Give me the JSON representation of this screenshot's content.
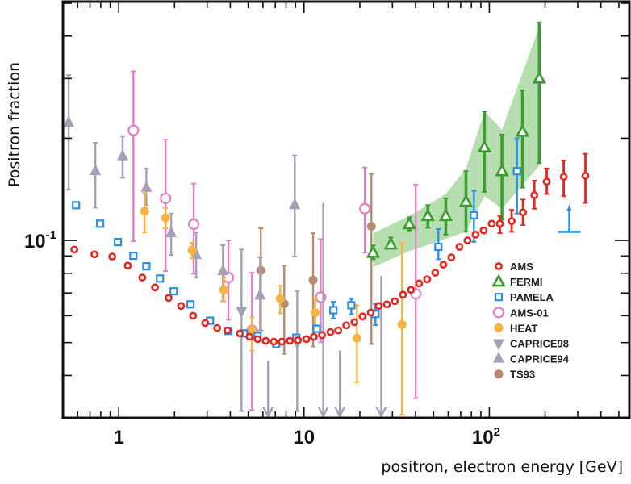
{
  "chart_data": {
    "type": "scatter",
    "title": "",
    "xlabel": "positron, electron energy [GeV]",
    "ylabel": "Positron fraction",
    "xscale": "log",
    "yscale": "log",
    "xlim": [
      0.5,
      570
    ],
    "ylim": [
      0.03,
      0.5
    ],
    "grid": false,
    "legend_position": "lower-right",
    "x_ticks": [
      {
        "value": 1,
        "base": "1",
        "exp": ""
      },
      {
        "value": 10,
        "base": "10",
        "exp": ""
      },
      {
        "value": 100,
        "base": "10",
        "exp": "2"
      }
    ],
    "y_ticks": [
      {
        "value": 0.1,
        "base": "10",
        "exp": "-1"
      }
    ],
    "band": {
      "series": "FERMI",
      "color": "#9fd397",
      "x": [
        23.6,
        37.0,
        58.2,
        74.8,
        94.1,
        117,
        186
      ],
      "upper": [
        0.105,
        0.118,
        0.137,
        0.163,
        0.24,
        0.212,
        0.426
      ],
      "lower": [
        0.0834,
        0.093,
        0.101,
        0.106,
        0.135,
        0.124,
        0.166
      ]
    },
    "series": [
      {
        "name": "AMS",
        "marker": "open-circle",
        "color": "#e8251f",
        "points": [
          [
            0.576,
            0.094,
            null,
            null
          ],
          [
            0.74,
            0.091,
            null,
            null
          ],
          [
            0.923,
            0.0896,
            null,
            null
          ],
          [
            1.12,
            0.0843,
            null,
            null
          ],
          [
            1.34,
            0.0777,
            null,
            null
          ],
          [
            1.57,
            0.0727,
            null,
            null
          ],
          [
            1.86,
            0.0677,
            null,
            null
          ],
          [
            2.17,
            0.0641,
            null,
            null
          ],
          [
            2.52,
            0.06,
            null,
            null
          ],
          [
            2.93,
            0.0571,
            null,
            null
          ],
          [
            3.4,
            0.0552,
            null,
            null
          ],
          [
            3.87,
            0.0543,
            null,
            null
          ],
          [
            4.51,
            0.0532,
            null,
            null
          ],
          [
            5.08,
            0.052,
            null,
            null
          ],
          [
            5.62,
            0.0512,
            null,
            null
          ],
          [
            6.21,
            0.0506,
            null,
            null
          ],
          [
            6.87,
            0.0503,
            null,
            null
          ],
          [
            7.59,
            0.0503,
            null,
            null
          ],
          [
            8.39,
            0.0506,
            null,
            null
          ],
          [
            9.27,
            0.0508,
            null,
            null
          ],
          [
            10.3,
            0.0512,
            null,
            null
          ],
          [
            11.3,
            0.052,
            null,
            null
          ],
          [
            12.5,
            0.0526,
            null,
            null
          ],
          [
            13.9,
            0.0537,
            null,
            null
          ],
          [
            15.3,
            0.0543,
            null,
            null
          ],
          [
            16.9,
            0.0562,
            null,
            null
          ],
          [
            18.7,
            0.0574,
            null,
            null
          ],
          [
            20.7,
            0.0597,
            null,
            null
          ],
          [
            22.9,
            0.0613,
            null,
            null
          ],
          [
            25.3,
            0.0641,
            null,
            null
          ],
          [
            28.0,
            0.0648,
            null,
            null
          ],
          [
            30.9,
            0.0662,
            null,
            null
          ],
          [
            34.2,
            0.0692,
            null,
            null
          ],
          [
            37.8,
            0.0715,
            null,
            null
          ],
          [
            41.8,
            0.0747,
            null,
            null
          ],
          [
            46.2,
            0.0768,
            null,
            null
          ],
          [
            51.1,
            0.0803,
            null,
            null
          ],
          [
            56.5,
            0.0848,
            null,
            null
          ],
          [
            62.4,
            0.0891,
            null,
            null
          ],
          [
            69.0,
            0.0957,
            null,
            null
          ],
          [
            76.3,
            0.1,
            null,
            null
          ],
          [
            84.3,
            0.104,
            null,
            null
          ],
          [
            93.2,
            0.107,
            null,
            null
          ],
          [
            103,
            0.112,
            null,
            null
          ],
          [
            114,
            0.112,
            0.105,
            0.118
          ],
          [
            132,
            0.114,
            0.106,
            0.123
          ],
          [
            152,
            0.121,
            0.111,
            0.132
          ],
          [
            175,
            0.136,
            0.124,
            0.15
          ],
          [
            204,
            0.149,
            0.137,
            0.163
          ],
          [
            252,
            0.154,
            0.135,
            0.172
          ],
          [
            330,
            0.155,
            0.129,
            0.18
          ]
        ]
      },
      {
        "name": "FERMI",
        "marker": "open-triangle-up",
        "color": "#3a9e2c",
        "points": [
          [
            23.6,
            0.092,
            0.0881,
            0.0967
          ],
          [
            29.4,
            0.0973,
            0.0947,
            0.102
          ],
          [
            37.0,
            0.1116,
            0.107,
            0.117
          ],
          [
            46.6,
            0.118,
            0.109,
            0.127
          ],
          [
            58.2,
            0.118,
            0.104,
            0.133
          ],
          [
            74.8,
            0.13,
            0.106,
            0.16
          ],
          [
            94.1,
            0.188,
            0.139,
            0.24
          ],
          [
            117,
            0.16,
            0.115,
            0.205
          ],
          [
            151,
            0.209,
            0.143,
            0.277
          ],
          [
            186,
            0.3,
            0.169,
            0.439
          ]
        ]
      },
      {
        "name": "PAMELA",
        "marker": "open-square",
        "color": "#2b8fe3",
        "points": [
          [
            0.588,
            0.127,
            null,
            null
          ],
          [
            0.794,
            0.112,
            null,
            null
          ],
          [
            0.99,
            0.0989,
            null,
            null
          ],
          [
            1.2,
            0.0901,
            null,
            null
          ],
          [
            1.41,
            0.0839,
            null,
            null
          ],
          [
            1.67,
            0.0772,
            null,
            null
          ],
          [
            1.98,
            0.0708,
            null,
            null
          ],
          [
            2.44,
            0.0648,
            null,
            null
          ],
          [
            3.11,
            0.058,
            null,
            null
          ],
          [
            3.91,
            0.0541,
            null,
            null
          ],
          [
            4.74,
            0.0532,
            null,
            null
          ],
          [
            5.62,
            0.0523,
            null,
            null
          ],
          [
            7.08,
            0.0495,
            null,
            null
          ],
          [
            9.09,
            0.0517,
            null,
            null
          ],
          [
            11.7,
            0.0549,
            null,
            null
          ],
          [
            14.4,
            0.0623,
            0.0589,
            0.066
          ],
          [
            18.0,
            0.0644,
            0.0606,
            0.0674
          ],
          [
            24.3,
            0.0607,
            0.0563,
            0.065
          ],
          [
            53.1,
            0.0957,
            0.088,
            0.108
          ],
          [
            82.6,
            0.1186,
            0.0991,
            0.14
          ],
          [
            141,
            0.16,
            0.12,
            0.2
          ]
        ],
        "lower_limits": [
          [
            270,
            0.106
          ]
        ]
      },
      {
        "name": "AMS-01",
        "marker": "open-circle-large",
        "color": "#e27dca",
        "points": [
          [
            1.2,
            0.211,
            0.0995,
            0.315
          ],
          [
            1.79,
            0.133,
            0.0812,
            0.198
          ],
          [
            2.54,
            0.1116,
            0.0798,
            0.147
          ],
          [
            3.91,
            0.0777,
            0.0584,
            0.1
          ],
          [
            5.24,
            0.0543,
            0.0316,
            0.0803
          ],
          [
            12.3,
            0.068,
            0.0501,
            0.101
          ],
          [
            21.3,
            0.124,
            0.092,
            0.164
          ],
          [
            40.1,
            0.0696,
            0.0343,
            0.146
          ]
        ]
      },
      {
        "name": "HEAT",
        "marker": "filled-circle",
        "color": "#f6b443",
        "points": [
          [
            1.38,
            0.122,
            0.1056,
            0.138
          ],
          [
            1.79,
            0.1166,
            0.1086,
            0.1245
          ],
          [
            2.49,
            0.0936,
            0.0886,
            0.0984
          ],
          [
            3.69,
            0.0715,
            0.0662,
            0.0777
          ],
          [
            5.24,
            0.0543,
            0.0474,
            0.0593
          ],
          [
            7.44,
            0.0674,
            0.061,
            0.0735
          ],
          [
            11.5,
            0.0613,
            0.0543,
            0.0677
          ],
          [
            19.3,
            0.0515,
            0.0382,
            0.0644
          ],
          [
            33.8,
            0.0565,
            0.0306,
            0.0984
          ]
        ]
      },
      {
        "name": "CAPRICE98",
        "marker": "filled-triangle-down",
        "color": "#a5a0b8",
        "points": [
          [
            4.6,
            0.062,
            0.0314,
            0.094
          ],
          [
            9.19,
            0.0501,
            0.0314,
            0.0708
          ]
        ],
        "upper_limits": [
          [
            6.4,
            0.0441
          ],
          [
            12.7,
            0.129
          ],
          [
            15.6,
            0.0474
          ],
          [
            26.1,
            0.0785
          ]
        ]
      },
      {
        "name": "CAPRICE94",
        "marker": "filled-triangle-up",
        "color": "#a5a0b8",
        "points": [
          [
            0.537,
            0.222,
            0.141,
            0.307
          ],
          [
            0.748,
            0.16,
            0.125,
            0.194
          ],
          [
            1.05,
            0.177,
            0.153,
            0.203
          ],
          [
            1.41,
            0.143,
            0.127,
            0.163
          ],
          [
            1.92,
            0.105,
            0.0906,
            0.12
          ],
          [
            2.62,
            0.0906,
            0.0777,
            0.1056
          ],
          [
            3.65,
            0.0812,
            0.0662,
            0.0968
          ],
          [
            5.79,
            0.0688,
            0.0543,
            0.0891
          ],
          [
            8.91,
            0.127,
            0.0896,
            0.178
          ]
        ]
      },
      {
        "name": "TS93",
        "marker": "filled-circle",
        "color": "#b88b70",
        "points": [
          [
            5.85,
            0.0816,
            0.0543,
            0.1086
          ],
          [
            7.82,
            0.0651,
            0.0463,
            0.0843
          ],
          [
            11.2,
            0.0764,
            0.0487,
            0.105
          ],
          [
            23.1,
            0.11,
            0.0495,
            0.157
          ]
        ]
      }
    ]
  }
}
